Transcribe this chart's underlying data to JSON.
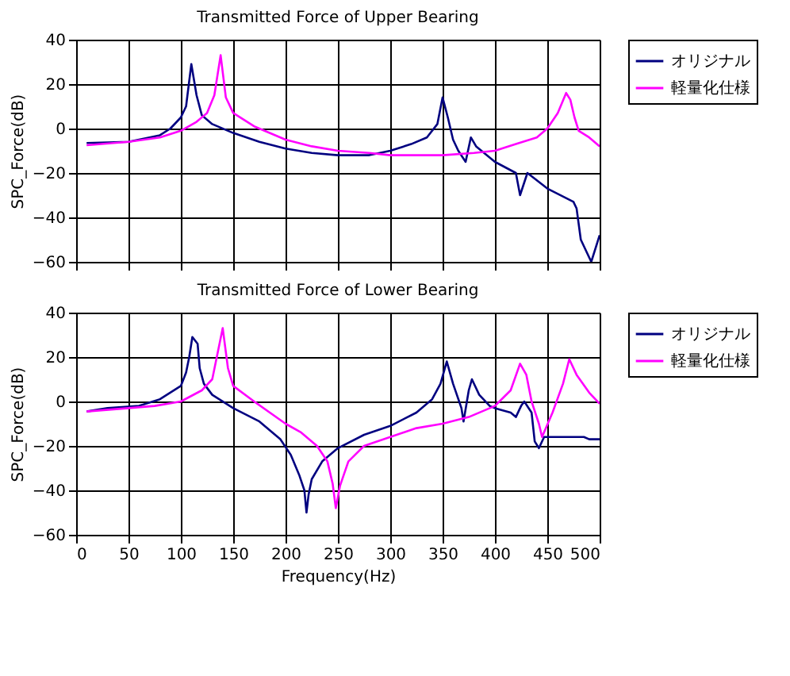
{
  "chart_data": [
    {
      "type": "line",
      "title": "Transmitted Force of Upper Bearing",
      "ylabel": "SPC_Force(dB)",
      "xlim": [
        0,
        500
      ],
      "xticks": [
        0,
        50,
        100,
        150,
        200,
        250,
        300,
        350,
        400,
        450,
        500
      ],
      "ylim": [
        -60,
        40
      ],
      "yticks": [
        -60,
        -40,
        -20,
        0,
        20,
        40
      ],
      "grid": true,
      "legend": "right",
      "tick_labels": "y",
      "series": [
        {
          "name": "オリジナル",
          "color": "#000080",
          "x": [
            10,
            50,
            80,
            90,
            100,
            105,
            110,
            115,
            120,
            130,
            150,
            175,
            200,
            225,
            250,
            280,
            300,
            320,
            335,
            345,
            350,
            355,
            360,
            365,
            372,
            377,
            382,
            400,
            420,
            424,
            431,
            450,
            475,
            478,
            482,
            492,
            500
          ],
          "values": [
            -6.5,
            -6,
            -3,
            0,
            5,
            10,
            29,
            15,
            6,
            2,
            -2,
            -6,
            -9,
            -11,
            -12,
            -12,
            -10,
            -7,
            -4,
            2,
            14,
            5,
            -5,
            -10,
            -15,
            -4,
            -8,
            -15,
            -20,
            -30,
            -20,
            -27,
            -33,
            -36,
            -50,
            -60,
            -48
          ]
        },
        {
          "name": "軽量化仕様",
          "color": "#ff00ff",
          "x": [
            10,
            50,
            80,
            100,
            115,
            125,
            132,
            138,
            143,
            150,
            170,
            200,
            225,
            250,
            280,
            300,
            350,
            380,
            400,
            420,
            440,
            450,
            460,
            468,
            472,
            476,
            480,
            490,
            500
          ],
          "values": [
            -7.5,
            -6,
            -4,
            -1,
            3,
            7,
            15,
            33,
            14,
            7,
            1,
            -5,
            -8,
            -10,
            -11,
            -12,
            -12,
            -11,
            -10,
            -7,
            -4,
            0,
            7,
            16,
            13,
            5,
            -1,
            -4,
            -8
          ]
        }
      ]
    },
    {
      "type": "line",
      "title": "Transmitted Force of Lower Bearing",
      "xlabel": "Frequency(Hz)",
      "ylabel": "SPC_Force(dB)",
      "xlim": [
        0,
        500
      ],
      "xticks": [
        0,
        50,
        100,
        150,
        200,
        250,
        300,
        350,
        400,
        450,
        500
      ],
      "ylim": [
        -60,
        40
      ],
      "yticks": [
        -60,
        -40,
        -20,
        0,
        20,
        40
      ],
      "grid": true,
      "legend": "right",
      "series": [
        {
          "name": "オリジナル",
          "color": "#000080",
          "x": [
            10,
            30,
            60,
            80,
            100,
            105,
            108,
            111,
            116,
            118,
            122,
            130,
            150,
            175,
            195,
            205,
            213,
            218,
            220,
            222,
            225,
            235,
            250,
            275,
            300,
            325,
            340,
            348,
            354,
            360,
            368,
            370,
            375,
            378,
            385,
            395,
            400,
            415,
            420,
            425,
            428,
            435,
            438,
            442,
            447,
            470,
            485,
            490,
            500
          ],
          "values": [
            -4.5,
            -3,
            -2,
            1,
            7,
            13,
            20,
            29,
            26,
            15,
            8,
            3,
            -3,
            -9,
            -17,
            -24,
            -33,
            -40,
            -50,
            -42,
            -35,
            -27,
            -21,
            -15,
            -11,
            -5,
            1,
            8,
            18,
            8,
            -3,
            -9,
            5,
            10,
            3,
            -2,
            -3,
            -5,
            -7,
            -2,
            0,
            -5,
            -18,
            -21,
            -16,
            -16,
            -16,
            -17,
            -17
          ]
        },
        {
          "name": "軽量化仕様",
          "color": "#ff00ff",
          "x": [
            10,
            50,
            75,
            100,
            120,
            130,
            140,
            145,
            150,
            170,
            200,
            215,
            230,
            240,
            245,
            248,
            252,
            260,
            275,
            300,
            325,
            350,
            375,
            400,
            415,
            424,
            430,
            435,
            442,
            445,
            455,
            465,
            471,
            478,
            490,
            500
          ],
          "values": [
            -4.5,
            -3,
            -2,
            0,
            5,
            10,
            33,
            15,
            7,
            0,
            -10,
            -14,
            -20,
            -27,
            -37,
            -48,
            -38,
            -27,
            -20,
            -16,
            -12,
            -10,
            -7,
            -2,
            5,
            17,
            12,
            0,
            -10,
            -16,
            -5,
            8,
            19,
            12,
            4,
            -1
          ]
        }
      ]
    }
  ]
}
